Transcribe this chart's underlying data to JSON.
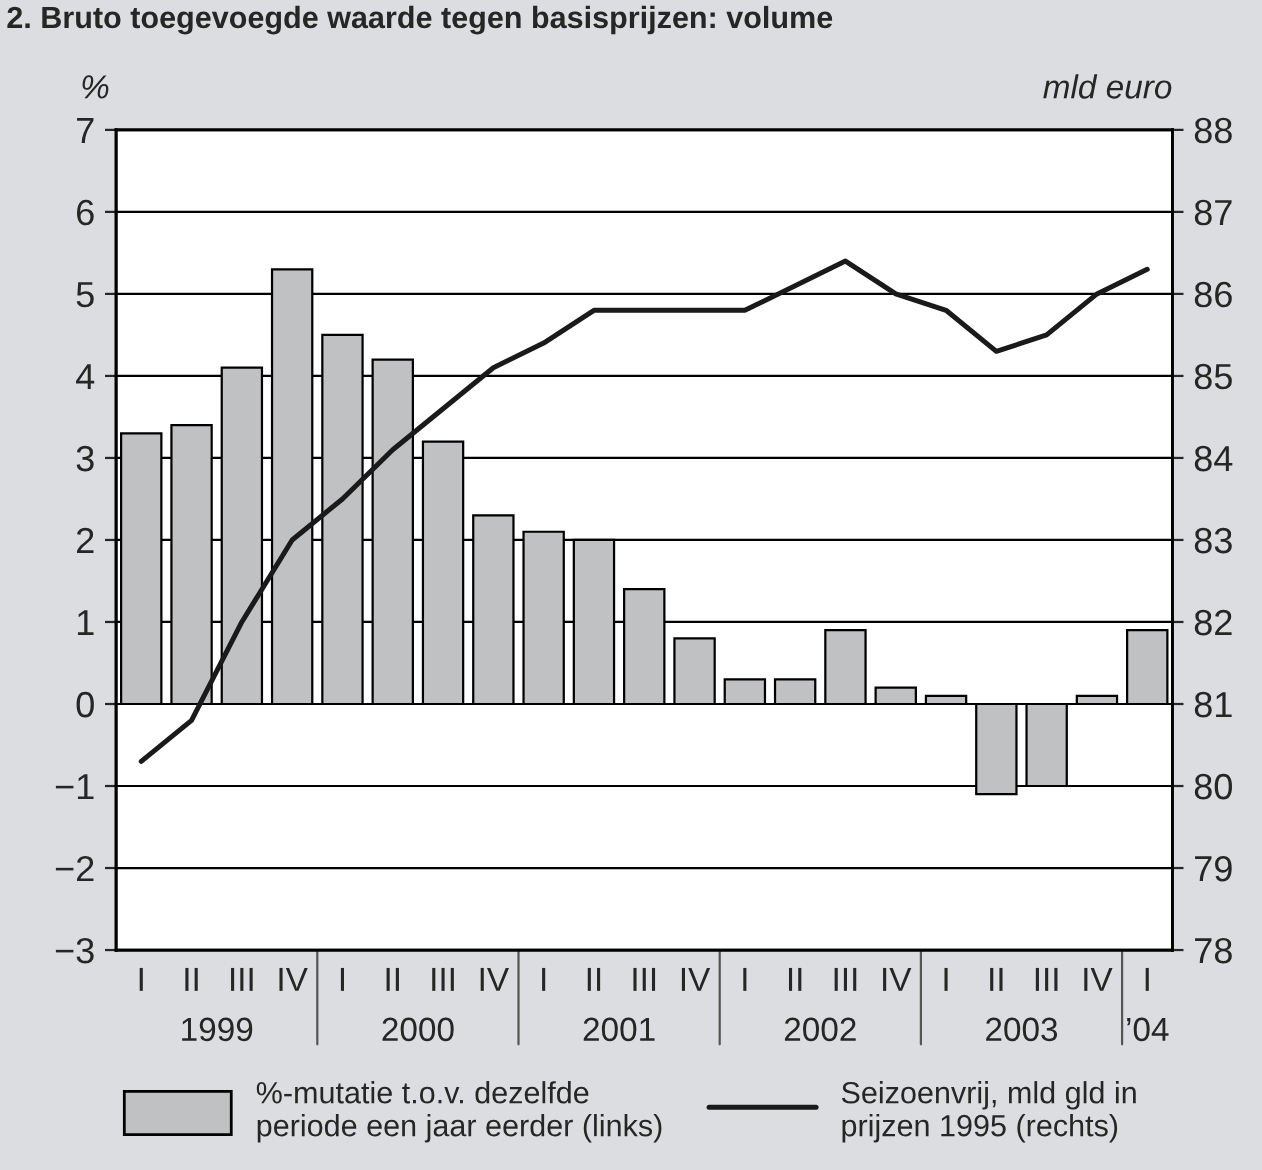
{
  "chart_data": {
    "type": "bar",
    "title": "2. Bruto toegevoegde waarde tegen basisprijzen: volume",
    "ylabel": "%",
    "y2label": "mld euro",
    "categories": [
      "I",
      "II",
      "III",
      "IV",
      "I",
      "II",
      "III",
      "IV",
      "I",
      "II",
      "III",
      "IV",
      "I",
      "II",
      "III",
      "IV",
      "I",
      "II",
      "III",
      "IV",
      "I"
    ],
    "annotations": [
      "1999",
      "2000",
      "2001",
      "2002",
      "2003",
      "’04"
    ],
    "series": [
      {
        "name": "%-mutatie t.o.v. dezelfde\nperiode een jaar eerder (links)",
        "color": "#c0c1c3",
        "values": [
          3.3,
          3.4,
          4.1,
          5.3,
          4.5,
          4.2,
          3.2,
          2.3,
          2.1,
          2.0,
          1.4,
          0.8,
          0.3,
          0.3,
          0.9,
          0.2,
          0.1,
          -1.1,
          -1.0,
          0.1,
          0.9
        ]
      },
      {
        "name": "Seizoenvrij, mld gld in\nprijzen 1995 (rechts)",
        "type": "line",
        "axis": "y2",
        "color": "#1a1a1a",
        "values": [
          80.3,
          80.8,
          82.0,
          83.0,
          83.5,
          84.1,
          84.6,
          85.1,
          85.4,
          85.8,
          85.8,
          85.8,
          85.8,
          86.1,
          86.4,
          86.0,
          85.8,
          85.3,
          85.5,
          86.0,
          86.3
        ]
      }
    ],
    "ylim": [
      -3,
      7
    ],
    "yticks": [
      {
        "value": -3,
        "label": "−3"
      },
      {
        "value": -2,
        "label": "−2"
      },
      {
        "value": -1,
        "label": "−1"
      },
      0,
      1,
      2,
      3,
      4,
      5,
      6,
      7
    ],
    "y2lim": [
      78,
      88
    ],
    "y2ticks": [
      78,
      79,
      80,
      81,
      82,
      83,
      84,
      85,
      86,
      87,
      88
    ],
    "grid": "y",
    "legend": "bottom"
  }
}
